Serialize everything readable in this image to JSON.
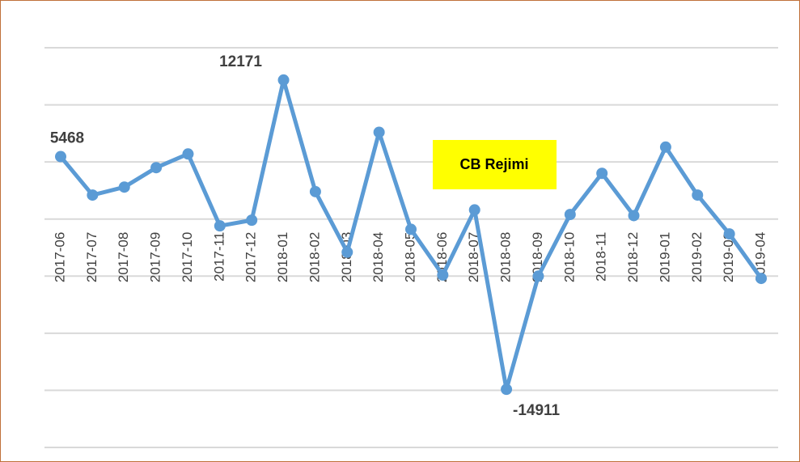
{
  "chart_data": {
    "type": "line",
    "categories": [
      "2017-06",
      "2017-07",
      "2017-08",
      "2017-09",
      "2017-10",
      "2017-11",
      "2017-12",
      "2018-01",
      "2018-02",
      "2018-03",
      "2018-04",
      "2018-05",
      "2018-06",
      "2018-07",
      "2018-08",
      "2018-09",
      "2018-10",
      "2018-11",
      "2018-12",
      "2019-01",
      "2019-02",
      "2019-03",
      "2019-04"
    ],
    "series": [
      {
        "color": "#5b9bd5",
        "values": [
          5468,
          2100,
          2800,
          4500,
          5700,
          -600,
          -100,
          12171,
          2400,
          -2900,
          7600,
          -900,
          -4900,
          800,
          -14911,
          -5000,
          400,
          4000,
          300,
          6300,
          2100,
          -1300,
          -5200
        ],
        "value_labels": [
          "5468",
          null,
          null,
          null,
          null,
          null,
          null,
          "12171",
          null,
          null,
          null,
          null,
          null,
          null,
          "-14911",
          null,
          null,
          null,
          null,
          null,
          null,
          null,
          null
        ]
      }
    ],
    "ylim": [
      -20000,
      15000
    ],
    "yticks": [
      -20000,
      -15000,
      -10000,
      -5000,
      0,
      5000,
      10000,
      15000
    ],
    "grid": true,
    "annotations": [
      {
        "text": "CB Rejimi",
        "background": "#ffff00"
      }
    ]
  }
}
